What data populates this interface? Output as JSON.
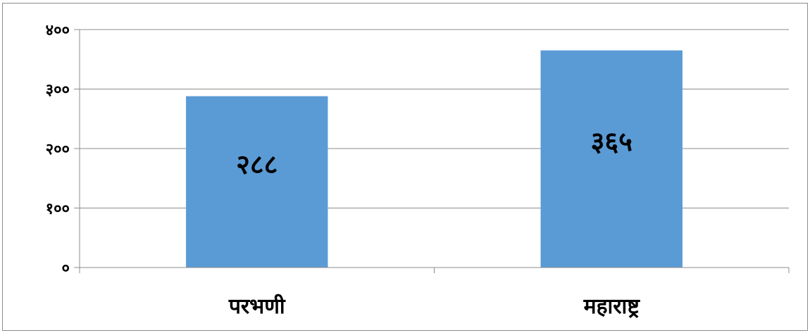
{
  "chart_data": {
    "type": "bar",
    "categories": [
      "परभणी",
      "महाराष्ट्र"
    ],
    "values": [
      288,
      365
    ],
    "data_labels": [
      "२८८",
      "३६५"
    ],
    "ylim": [
      0,
      400
    ],
    "yticks": [
      0,
      100,
      200,
      300,
      400
    ],
    "ytick_labels": [
      "०",
      "१००",
      "२००",
      "३००",
      "४००"
    ],
    "grid": true,
    "legend": "none",
    "bar_color": "#5b9bd5",
    "grid_color": "#8c8c8c"
  }
}
